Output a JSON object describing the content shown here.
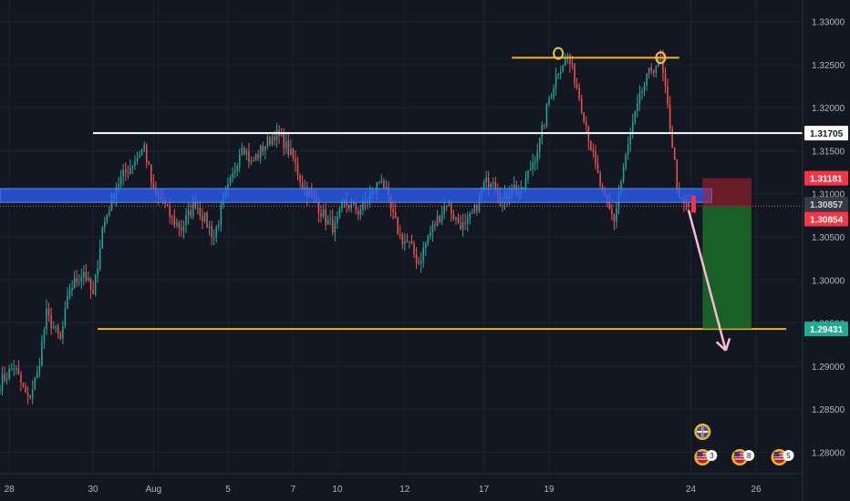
{
  "chart_data": {
    "type": "candlestick",
    "title": "",
    "xlabel": "",
    "ylabel": "",
    "ylim": [
      1.2775,
      1.3325
    ],
    "y_ticks": [
      "1.33000",
      "1.32500",
      "1.32000",
      "1.31500",
      "1.31000",
      "1.30500",
      "1.30000",
      "1.29500",
      "1.29000",
      "1.28500",
      "1.28000"
    ],
    "y_tick_values": [
      1.33,
      1.325,
      1.32,
      1.315,
      1.31,
      1.305,
      1.3,
      1.295,
      1.29,
      1.285,
      1.28
    ],
    "x_ticks": [
      {
        "label": "28",
        "index": 4
      },
      {
        "label": "30",
        "index": 40
      },
      {
        "label": "Aug",
        "index": 66
      },
      {
        "label": "5",
        "index": 98
      },
      {
        "label": "7",
        "index": 126
      },
      {
        "label": "10",
        "index": 145
      },
      {
        "label": "12",
        "index": 174
      },
      {
        "label": "17",
        "index": 208
      },
      {
        "label": "19",
        "index": 236
      },
      {
        "label": "24",
        "index": 297
      },
      {
        "label": "26",
        "index": 325
      }
    ],
    "grid": true,
    "price_path": [
      [
        0,
        1.288
      ],
      [
        6,
        1.29
      ],
      [
        12,
        1.286
      ],
      [
        16,
        1.289
      ],
      [
        20,
        1.296
      ],
      [
        26,
        1.293
      ],
      [
        30,
        1.299
      ],
      [
        36,
        1.301
      ],
      [
        40,
        1.298
      ],
      [
        44,
        1.306
      ],
      [
        50,
        1.311
      ],
      [
        58,
        1.314
      ],
      [
        62,
        1.3155
      ],
      [
        66,
        1.31
      ],
      [
        70,
        1.309
      ],
      [
        74,
        1.307
      ],
      [
        78,
        1.306
      ],
      [
        84,
        1.309
      ],
      [
        88,
        1.307
      ],
      [
        92,
        1.305
      ],
      [
        96,
        1.309
      ],
      [
        100,
        1.312
      ],
      [
        104,
        1.316
      ],
      [
        108,
        1.3135
      ],
      [
        112,
        1.315
      ],
      [
        118,
        1.317
      ],
      [
        122,
        1.316
      ],
      [
        126,
        1.314
      ],
      [
        130,
        1.311
      ],
      [
        136,
        1.309
      ],
      [
        140,
        1.307
      ],
      [
        144,
        1.306
      ],
      [
        148,
        1.309
      ],
      [
        154,
        1.308
      ],
      [
        160,
        1.31
      ],
      [
        164,
        1.312
      ],
      [
        168,
        1.308
      ],
      [
        172,
        1.305
      ],
      [
        176,
        1.304
      ],
      [
        180,
        1.302
      ],
      [
        184,
        1.305
      ],
      [
        188,
        1.307
      ],
      [
        192,
        1.309
      ],
      [
        196,
        1.307
      ],
      [
        200,
        1.306
      ],
      [
        204,
        1.308
      ],
      [
        208,
        1.311
      ],
      [
        212,
        1.312
      ],
      [
        216,
        1.309
      ],
      [
        220,
        1.311
      ],
      [
        224,
        1.31
      ],
      [
        228,
        1.313
      ],
      [
        232,
        1.316
      ],
      [
        236,
        1.321
      ],
      [
        240,
        1.3245
      ],
      [
        244,
        1.326
      ],
      [
        248,
        1.3225
      ],
      [
        252,
        1.318
      ],
      [
        256,
        1.313
      ],
      [
        260,
        1.309
      ],
      [
        264,
        1.307
      ],
      [
        268,
        1.313
      ],
      [
        272,
        1.318
      ],
      [
        276,
        1.322
      ],
      [
        280,
        1.3245
      ],
      [
        284,
        1.3255
      ],
      [
        288,
        1.318
      ],
      [
        292,
        1.309
      ],
      [
        296,
        1.3085
      ]
    ],
    "last_index": 296,
    "x_max_index": 345,
    "levels": [
      {
        "name": "upper-resistance",
        "price": 1.3258,
        "from": 220,
        "to": 292,
        "color": "#f0b323"
      },
      {
        "name": "resistance-white",
        "price": 1.31705,
        "from": 40,
        "to": 345,
        "color": "#ffffff"
      },
      {
        "name": "support-orange",
        "price": 1.29431,
        "from": 42,
        "to": 338,
        "color": "#f0b323"
      }
    ],
    "zone": {
      "top": 1.3106,
      "bottom": 1.309,
      "from": 0,
      "to": 306,
      "color": "#2962ff"
    },
    "current_price": 1.30857,
    "position": {
      "entry": 1.30854,
      "stop": 1.31181,
      "target": 1.29431,
      "from": 302,
      "to": 323
    },
    "price_labels": [
      {
        "name": "resistance-label",
        "text": "1.31705",
        "price": 1.31705,
        "bg": "#ffffff",
        "fg": "#131722"
      },
      {
        "name": "stop-label",
        "text": "1.31181",
        "price": 1.31181,
        "bg": "#f23645",
        "fg": "#ffffff"
      },
      {
        "name": "current-label",
        "text": "1.30857",
        "price": 1.30857,
        "bg": "#363a45",
        "fg": "#d1d4dc"
      },
      {
        "name": "entry-label",
        "text": "1.30854",
        "price": 1.30854,
        "bg": "#f23645",
        "fg": "#ffffff"
      },
      {
        "name": "target-label",
        "text": "1.29431",
        "price": 1.29431,
        "bg": "#22ab94",
        "fg": "#ffffff"
      }
    ],
    "annotations": [
      {
        "name": "peak-marker-1",
        "price": 1.3263,
        "index": 240
      },
      {
        "name": "peak-marker-2",
        "price": 1.3258,
        "index": 284
      }
    ],
    "arrow": {
      "from": [
        296,
        1.3081
      ],
      "to": [
        312,
        1.2918
      ],
      "color": "#f8bbd0"
    },
    "event_badges": [
      {
        "name": "uk-event-badge",
        "icon": "uk-flag-icon",
        "index": 302,
        "row": 0,
        "count": ""
      },
      {
        "name": "us-event-badge-1",
        "icon": "us-flag-icon",
        "index": 302,
        "row": 1,
        "count": "3"
      },
      {
        "name": "us-event-badge-2",
        "icon": "us-flag-icon",
        "index": 318,
        "row": 1,
        "count": "8"
      },
      {
        "name": "us-event-badge-3",
        "icon": "us-flag-icon",
        "index": 335,
        "row": 1,
        "count": "5"
      }
    ],
    "colors": {
      "up": "#26a69a",
      "down": "#ef5350",
      "grid": "#1e222d",
      "axis_text": "#b2b5be"
    }
  }
}
